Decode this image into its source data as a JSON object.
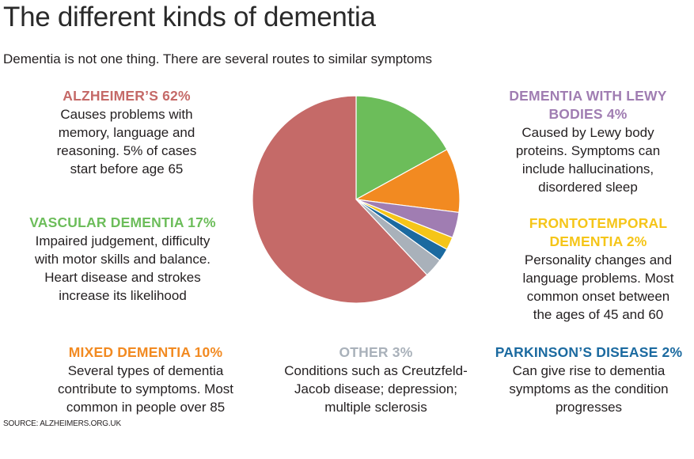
{
  "title": "The different kinds of dementia",
  "subtitle": "Dementia is not one thing. There are several routes to similar symptoms",
  "source": "SOURCE: ALZHEIMERS.ORG.UK",
  "colors": {
    "alzheimers": "#c56a68",
    "vascular": "#6cbd5a",
    "mixed": "#f28a21",
    "lewy": "#a07db2",
    "frontotemporal": "#f5c518",
    "parkinsons": "#1b6aa0",
    "other": "#a9b1ba"
  },
  "blocks": {
    "alzheimers": {
      "heading": "ALZHEIMER’S 62%",
      "lines": [
        "Causes problems with",
        "memory, language and",
        "reasoning. 5% of cases",
        "start before age 65"
      ]
    },
    "vascular": {
      "heading": "VASCULAR DEMENTIA 17%",
      "lines": [
        "Impaired judgement, difficulty",
        "with motor skills and balance.",
        "Heart disease and strokes",
        "increase its likelihood"
      ]
    },
    "mixed": {
      "heading": "MIXED DEMENTIA 10%",
      "lines": [
        "Several types of dementia",
        "contribute to symptoms. Most",
        "common in people over 85"
      ]
    },
    "lewy": {
      "heading": [
        "DEMENTIA WITH LEWY",
        "BODIES 4%"
      ],
      "lines": [
        "Caused by Lewy body",
        "proteins. Symptoms can",
        "include hallucinations,",
        "disordered sleep"
      ]
    },
    "frontotemporal": {
      "heading": [
        "FRONTOTEMPORAL",
        "DEMENTIA 2%"
      ],
      "lines": [
        "Personality changes and",
        "language problems. Most",
        "common onset between",
        "the ages of 45 and 60"
      ]
    },
    "other": {
      "heading": "OTHER 3%",
      "lines": [
        "Conditions such as Creutzfeld-",
        "Jacob disease; depression;",
        "multiple sclerosis"
      ]
    },
    "parkinsons": {
      "heading": "PARKINSON’S DISEASE 2%",
      "lines": [
        "Can give rise to dementia",
        "symptoms as the condition",
        "progresses"
      ]
    }
  },
  "chart_data": {
    "type": "pie",
    "start_angle_deg": 0,
    "direction": "clockwise",
    "slices": [
      {
        "key": "vascular",
        "value": 17
      },
      {
        "key": "mixed",
        "value": 10
      },
      {
        "key": "lewy",
        "value": 4
      },
      {
        "key": "frontotemporal",
        "value": 2
      },
      {
        "key": "parkinsons",
        "value": 2
      },
      {
        "key": "other",
        "value": 3
      },
      {
        "key": "alzheimers",
        "value": 62
      }
    ]
  }
}
